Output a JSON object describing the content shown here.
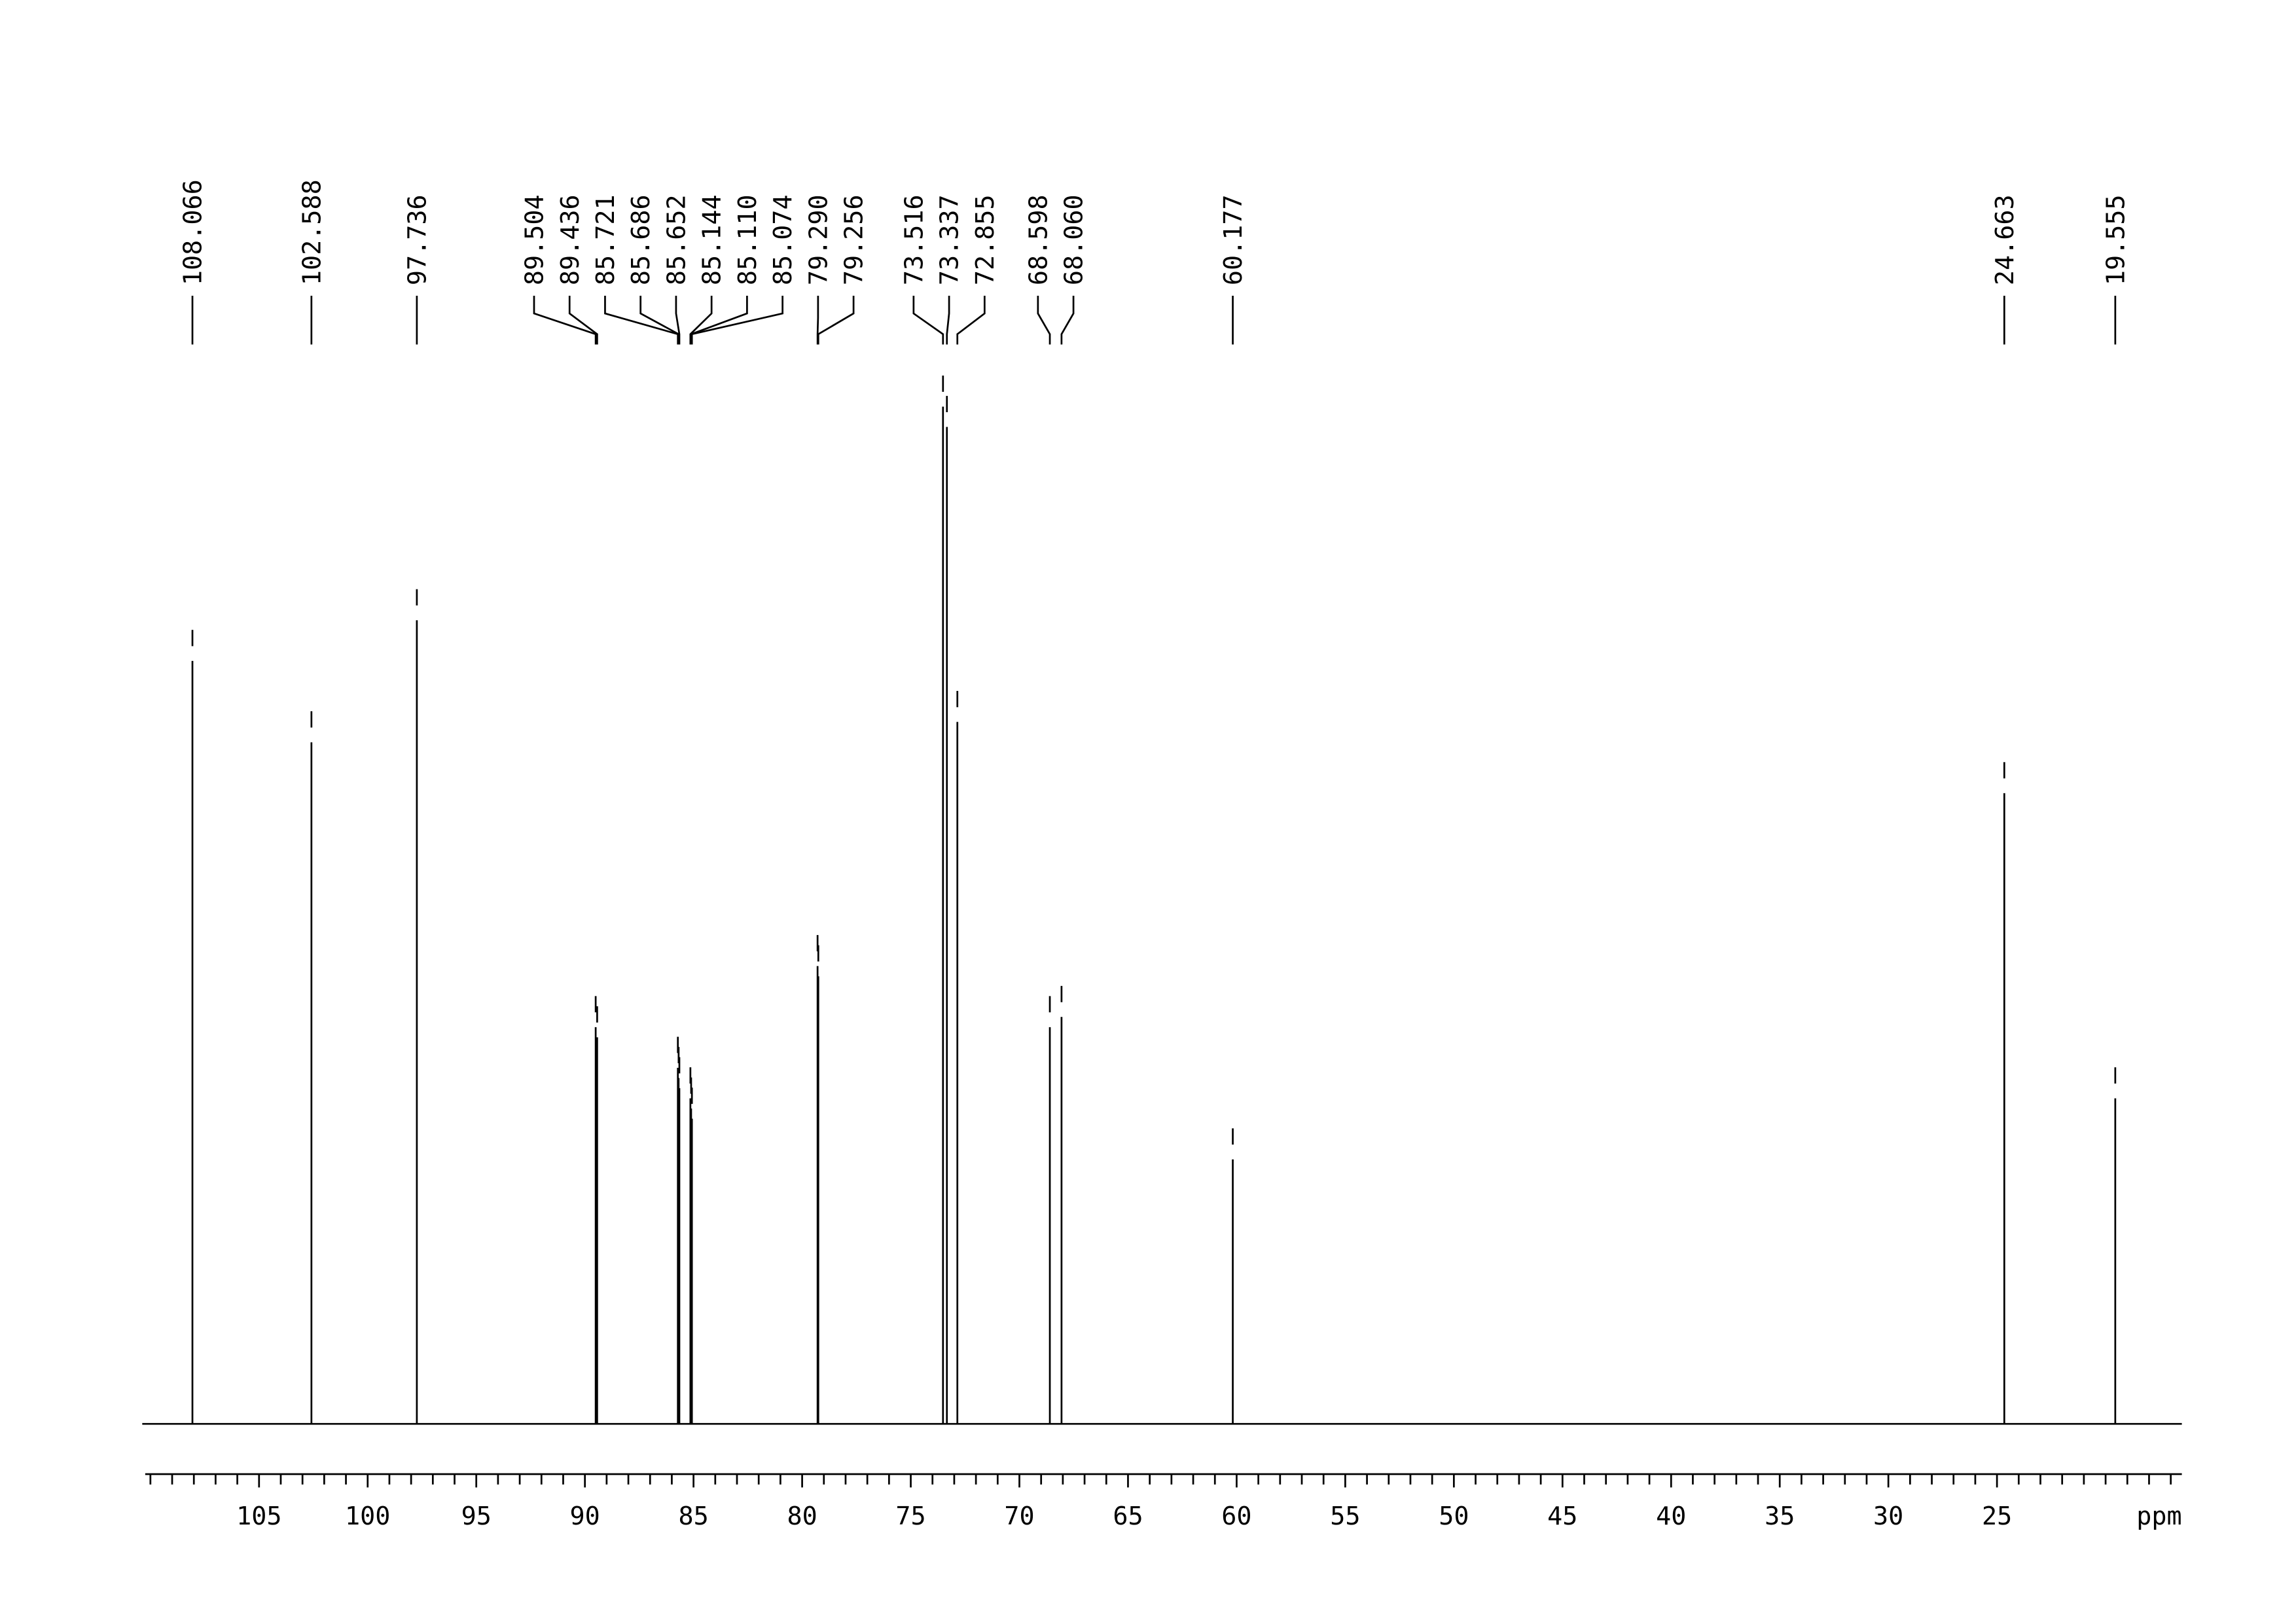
{
  "chart_data": {
    "type": "spectrum",
    "color": "#000000",
    "x": [
      108.066,
      102.588,
      97.736,
      89.504,
      89.436,
      85.721,
      85.686,
      85.652,
      85.144,
      {
        "value": 85.11,
        "label": "85.110"
      },
      85.074,
      {
        "value": 79.29,
        "label": "79.290"
      },
      79.256,
      73.516,
      73.337,
      72.855,
      68.598,
      {
        "value": 68.06,
        "label": "68.060"
      },
      60.177,
      24.663,
      19.555
    ],
    "values": [
      75,
      67,
      79,
      39,
      38,
      35,
      34,
      33,
      32,
      31,
      30,
      45,
      44,
      100,
      98,
      69,
      39,
      40,
      26,
      62,
      32
    ],
    "xlim": [
      110.24,
      16.49
    ],
    "xticks": [
      105,
      100,
      95,
      90,
      85,
      80,
      75,
      70,
      65,
      60,
      55,
      50,
      45,
      40,
      35,
      30,
      25
    ],
    "xminorticks": [
      110,
      109,
      108,
      107,
      106,
      104,
      103,
      102,
      101,
      99,
      98,
      97,
      96,
      94,
      93,
      92,
      91,
      89,
      88,
      87,
      86,
      84,
      83,
      82,
      81,
      79,
      78,
      77,
      76,
      74,
      73,
      72,
      71,
      69,
      68,
      67,
      66,
      64,
      63,
      62,
      61,
      59,
      58,
      57,
      56,
      54,
      53,
      52,
      51,
      49,
      48,
      47,
      46,
      44,
      43,
      42,
      41,
      39,
      38,
      37,
      36,
      34,
      33,
      32,
      31,
      29,
      28,
      27,
      26,
      24,
      23,
      22,
      21,
      20,
      19,
      18,
      17
    ],
    "xlabel": "ppm"
  }
}
